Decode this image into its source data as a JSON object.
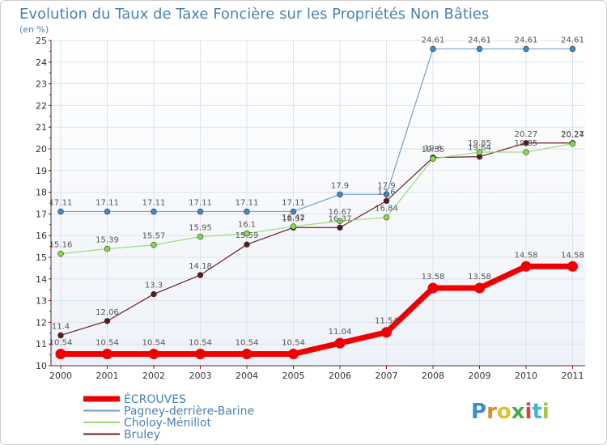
{
  "chart_data": {
    "type": "line",
    "title": "Evolution du Taux de Taxe Foncière sur les Propriétés Non Bâties",
    "ylabel": "(en %)",
    "xlabel": "",
    "ylim": [
      10,
      25
    ],
    "y_ticks": [
      "10",
      "11",
      "12",
      "13",
      "14",
      "15",
      "16",
      "17",
      "18",
      "19",
      "20",
      "21",
      "22",
      "23",
      "24",
      "25"
    ],
    "x": [
      "2000",
      "2001",
      "2002",
      "2003",
      "2004",
      "2005",
      "2006",
      "2007",
      "2008",
      "2009",
      "2010",
      "2011"
    ],
    "series": [
      {
        "name": "Bruley",
        "color": "#6b1f24",
        "marker": "#5a1a1a",
        "values": [
          11.4,
          12.06,
          13.3,
          14.18,
          15.59,
          16.37,
          16.37,
          17.6,
          19.6,
          19.64,
          20.27,
          20.27
        ],
        "labels": [
          "11.4",
          "12.06",
          "13.3",
          "14.18",
          "15.59",
          "16.37",
          "16.37",
          "17.6",
          "19.6",
          "19.64",
          "20.27",
          "20.27"
        ]
      },
      {
        "name": "Choloy-Ménillot",
        "color": "#99dd77",
        "marker": "#88dd44",
        "values": [
          15.16,
          15.39,
          15.57,
          15.95,
          16.1,
          16.42,
          16.67,
          16.84,
          19.55,
          19.85,
          19.85,
          20.24
        ],
        "labels": [
          "15.16",
          "15.39",
          "15.57",
          "15.95",
          "16.1",
          "16.42",
          "16.67",
          "16.84",
          "19.55",
          "19.85",
          "19.85",
          "20.24"
        ]
      },
      {
        "name": "Pagney-derrière-Barine",
        "color": "#6fa0d0",
        "marker": "#3a8cd0",
        "values": [
          17.11,
          17.11,
          17.11,
          17.11,
          17.11,
          17.11,
          17.9,
          17.9,
          24.61,
          24.61,
          24.61,
          24.61
        ],
        "labels": [
          "17.11",
          "17.11",
          "17.11",
          "17.11",
          "17.11",
          "17.11",
          "17.9",
          "17.9",
          "24.61",
          "24.61",
          "24.61",
          "24.61"
        ]
      },
      {
        "name": "ÉCROUVES",
        "color": "#ee0000",
        "marker": "#ee0000",
        "values": [
          10.54,
          10.54,
          10.54,
          10.54,
          10.54,
          10.54,
          11.04,
          11.54,
          13.58,
          13.58,
          14.58,
          14.58
        ],
        "labels": [
          "10.54",
          "10.54",
          "10.54",
          "10.54",
          "10.54",
          "10.54",
          "11.04",
          "11.54",
          "13.58",
          "13.58",
          "14.58",
          "14.58"
        ]
      }
    ],
    "legend_order": [
      "ÉCROUVES",
      "Pagney-derrière-Barine",
      "Choloy-Ménillot",
      "Bruley"
    ]
  },
  "branding": {
    "logo_letters": [
      "P",
      "r",
      "o",
      "x",
      "i",
      "t",
      "i"
    ],
    "logo_colors": [
      "#3c8cd2",
      "#e08a2c",
      "#e0c02c",
      "#4aa84a",
      "#e03c3c",
      "#3cb4dc",
      "#9ccc3c"
    ]
  }
}
